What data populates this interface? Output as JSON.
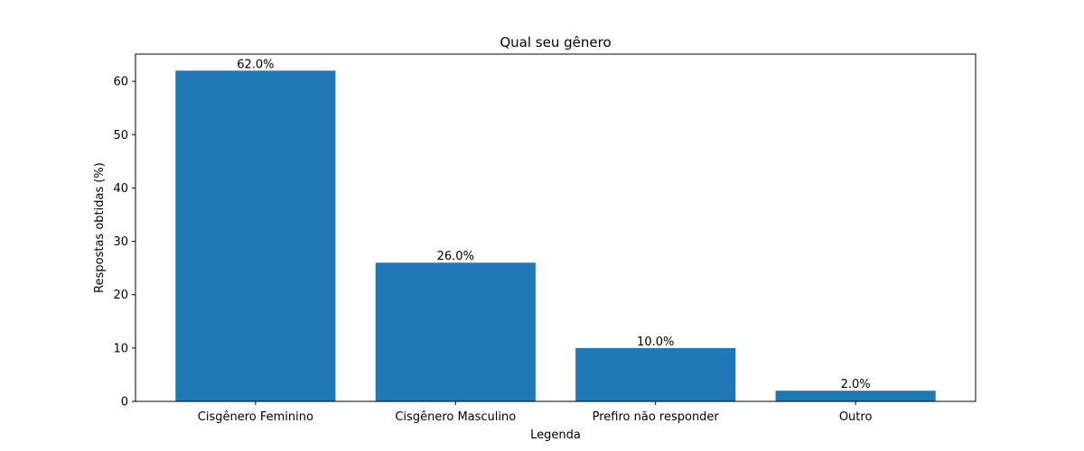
{
  "chart_data": {
    "type": "bar",
    "title": "Qual seu gênero",
    "xlabel": "Legenda",
    "ylabel": "Respostas obtidas (%)",
    "categories": [
      "Cisgênero Feminino",
      "Cisgênero Masculino",
      "Prefiro não responder",
      "Outro"
    ],
    "values": [
      62.0,
      26.0,
      10.0,
      2.0
    ],
    "value_labels": [
      "62.0%",
      "26.0%",
      "10.0%",
      "2.0%"
    ],
    "ylim": [
      0,
      65.1
    ],
    "yticks": [
      0,
      10,
      20,
      30,
      40,
      50,
      60
    ],
    "bar_color": "#1f77b4",
    "grid": false
  }
}
